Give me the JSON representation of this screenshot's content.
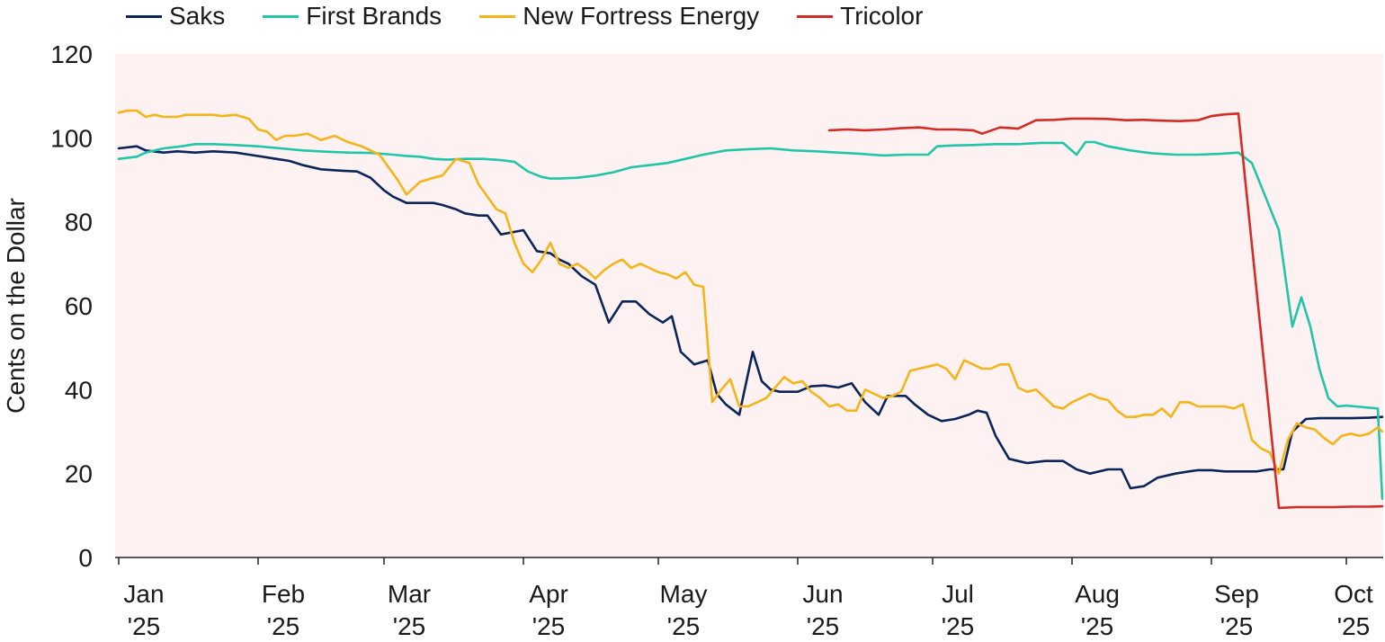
{
  "chart_data": {
    "type": "line",
    "title": "",
    "xlabel": "",
    "ylabel": "Cents on the Dollar",
    "ylim": [
      0,
      120
    ],
    "yticks": [
      0,
      20,
      40,
      60,
      80,
      100,
      120
    ],
    "grid": false,
    "legend_position": "top-left",
    "background_color": "#fdf2f1",
    "x_unit": "days since Jan 1 2025",
    "xlim": [
      0,
      281
    ],
    "x_ticks": [
      {
        "x": 0,
        "month": "Jan",
        "year": "'25"
      },
      {
        "x": 31,
        "month": "Feb",
        "year": "'25"
      },
      {
        "x": 59,
        "month": "Mar",
        "year": "'25"
      },
      {
        "x": 90,
        "month": "Apr",
        "year": "'25"
      },
      {
        "x": 120,
        "month": "May",
        "year": "'25"
      },
      {
        "x": 151,
        "month": "Jun",
        "year": "'25"
      },
      {
        "x": 181,
        "month": "Jul",
        "year": "'25"
      },
      {
        "x": 212,
        "month": "Aug",
        "year": "'25"
      },
      {
        "x": 243,
        "month": "Sep",
        "year": "'25"
      },
      {
        "x": 273,
        "month": "Oct",
        "year": "'25"
      }
    ],
    "series": [
      {
        "name": "Saks",
        "color": "#0b2559",
        "x": [
          0,
          4,
          6,
          10,
          13,
          17,
          21,
          26,
          29,
          32,
          35,
          38,
          41,
          45,
          49,
          53,
          56,
          59,
          61,
          64,
          67,
          70,
          72,
          75,
          77,
          80,
          82,
          85,
          90,
          93,
          96,
          98,
          100,
          103,
          106,
          109,
          112,
          115,
          116,
          118,
          121,
          123,
          125,
          128,
          131,
          133,
          135,
          138,
          141,
          143,
          145,
          147,
          149,
          151,
          154,
          157,
          160,
          163,
          166,
          169,
          171,
          173,
          175,
          177,
          180,
          183,
          186,
          189,
          191,
          193,
          195,
          198,
          200,
          202,
          206,
          210,
          213,
          216,
          220,
          223,
          225,
          228,
          231,
          235,
          238,
          240,
          243,
          246,
          249,
          253,
          256,
          259,
          261,
          264,
          267,
          270,
          274,
          278,
          281
        ],
        "values": [
          97.5,
          98,
          97,
          96.5,
          96.8,
          96.5,
          96.8,
          96.5,
          96,
          95.5,
          95,
          94.5,
          93.5,
          92.5,
          92.2,
          92,
          90.5,
          87.5,
          86,
          84.5,
          84.5,
          84.5,
          84,
          83,
          82,
          81.5,
          81.5,
          77,
          78,
          73,
          72.5,
          71,
          70,
          67,
          65,
          56,
          61,
          61,
          60,
          58,
          56,
          57.5,
          49,
          46,
          47,
          39,
          36.5,
          34,
          49,
          42,
          40,
          39.5,
          39.5,
          39.5,
          40.8,
          41,
          40.5,
          41.5,
          37,
          34,
          38.5,
          38.5,
          38.5,
          36.5,
          34,
          32.5,
          33,
          34,
          35,
          34.5,
          29,
          23.5,
          23,
          22.5,
          23,
          23,
          21,
          20,
          21,
          21,
          16.5,
          17,
          19,
          20,
          20.5,
          20.8,
          20.8,
          20.5,
          20.5,
          20.5,
          21,
          21,
          30,
          33,
          33.2,
          33.2,
          33.2,
          33.3,
          33.5
        ]
      },
      {
        "name": "First Brands",
        "color": "#22c5a7",
        "x": [
          0,
          4,
          6,
          10,
          14,
          17,
          21,
          26,
          31,
          36,
          41,
          46,
          51,
          56,
          61,
          64,
          67,
          70,
          73,
          77,
          81,
          85,
          88,
          91,
          94,
          96,
          98,
          102,
          106,
          110,
          114,
          118,
          122,
          126,
          130,
          135,
          140,
          145,
          150,
          155,
          160,
          165,
          170,
          175,
          180,
          182,
          186,
          190,
          195,
          200,
          205,
          210,
          213,
          215,
          217,
          220,
          225,
          230,
          235,
          240,
          245,
          249,
          252,
          255,
          258,
          261,
          263,
          265,
          267,
          269,
          271,
          273,
          275,
          278,
          280,
          281
        ],
        "values": [
          95,
          95.5,
          96.5,
          97.5,
          98,
          98.5,
          98.5,
          98.3,
          98,
          97.5,
          97,
          96.7,
          96.5,
          96.4,
          96,
          95.7,
          95.5,
          95,
          94.8,
          95,
          95,
          94.7,
          94.3,
          92,
          90.7,
          90.3,
          90.3,
          90.5,
          91,
          91.8,
          93,
          93.5,
          94,
          95,
          96,
          97,
          97.3,
          97.5,
          97,
          96.8,
          96.5,
          96.2,
          95.8,
          96,
          96,
          98,
          98.2,
          98.3,
          98.5,
          98.5,
          98.8,
          98.8,
          96,
          99,
          99,
          98,
          97,
          96.3,
          96,
          96,
          96.2,
          96.5,
          94,
          86,
          78,
          55,
          62,
          55,
          45,
          38,
          36,
          36.2,
          36,
          35.7,
          35.5,
          14
        ]
      },
      {
        "name": "New Fortress Energy",
        "color": "#f4b41a",
        "x": [
          0,
          2,
          4,
          6,
          8,
          10,
          13,
          15,
          18,
          21,
          23,
          26,
          29,
          31,
          33,
          35,
          37,
          39,
          42,
          45,
          48,
          51,
          54,
          56,
          58,
          60,
          62,
          64,
          67,
          70,
          72,
          75,
          78,
          80,
          82,
          84,
          86,
          88,
          90,
          92,
          94,
          96,
          98,
          100,
          102,
          104,
          106,
          108,
          110,
          112,
          114,
          116,
          118,
          120,
          122,
          124,
          126,
          128,
          130,
          132,
          134,
          136,
          138,
          140,
          142,
          144,
          146,
          148,
          150,
          152,
          154,
          156,
          158,
          160,
          162,
          164,
          166,
          168,
          170,
          172,
          174,
          176,
          178,
          180,
          182,
          184,
          186,
          188,
          190,
          192,
          194,
          196,
          198,
          200,
          202,
          204,
          206,
          208,
          210,
          212,
          214,
          216,
          218,
          220,
          222,
          224,
          226,
          228,
          230,
          232,
          234,
          236,
          238,
          240,
          242,
          244,
          246,
          248,
          250,
          252,
          254,
          256,
          258,
          260,
          262,
          264,
          266,
          268,
          270,
          272,
          274,
          276,
          278,
          280,
          281
        ],
        "values": [
          106,
          106.5,
          106.5,
          105,
          105.5,
          105,
          105,
          105.5,
          105.5,
          105.5,
          105.2,
          105.5,
          104.5,
          102,
          101.5,
          99.5,
          100.5,
          100.5,
          101,
          99.5,
          100.5,
          99,
          98,
          97,
          96,
          93,
          90,
          86.5,
          89.5,
          90.5,
          91,
          95,
          94,
          89,
          86,
          83,
          82,
          75,
          70,
          68,
          71,
          75,
          70,
          69,
          70,
          68.5,
          66.5,
          68.5,
          70,
          71,
          69,
          70,
          69,
          68,
          67.5,
          66.5,
          68,
          65,
          64.5,
          37,
          40,
          42.5,
          36,
          36,
          37,
          38,
          40.5,
          43,
          41.5,
          42,
          39.5,
          38,
          36,
          36.5,
          35,
          35,
          40,
          39,
          38,
          38.5,
          39.5,
          44.5,
          45,
          45.5,
          46,
          45,
          42.5,
          47,
          46,
          45,
          45,
          46,
          46,
          40.5,
          39.5,
          40,
          38,
          36,
          35.5,
          37,
          38,
          39,
          38,
          37.5,
          35,
          33.5,
          33.5,
          34,
          34,
          35.5,
          33.5,
          37,
          37,
          36,
          36,
          36,
          36,
          35.5,
          36.5,
          28,
          26,
          25,
          20,
          28,
          32,
          31,
          30.5,
          28.5,
          27,
          29,
          29.5,
          29,
          29.5,
          31,
          30
        ]
      },
      {
        "name": "Tricolor",
        "color": "#d42b27",
        "x": [
          158,
          162,
          166,
          170,
          174,
          178,
          182,
          186,
          190,
          192,
          196,
          200,
          204,
          208,
          212,
          216,
          220,
          224,
          228,
          232,
          236,
          240,
          243,
          246,
          249,
          258,
          262,
          266,
          270,
          274,
          278,
          281
        ],
        "values": [
          101.8,
          102,
          101.8,
          102,
          102.3,
          102.5,
          102,
          102,
          101.8,
          101,
          102.5,
          102.2,
          104.2,
          104.3,
          104.6,
          104.6,
          104.5,
          104.2,
          104.3,
          104.1,
          104,
          104.2,
          105.2,
          105.6,
          105.8,
          11.8,
          12,
          12,
          12,
          12.1,
          12.1,
          12.2
        ]
      }
    ]
  }
}
